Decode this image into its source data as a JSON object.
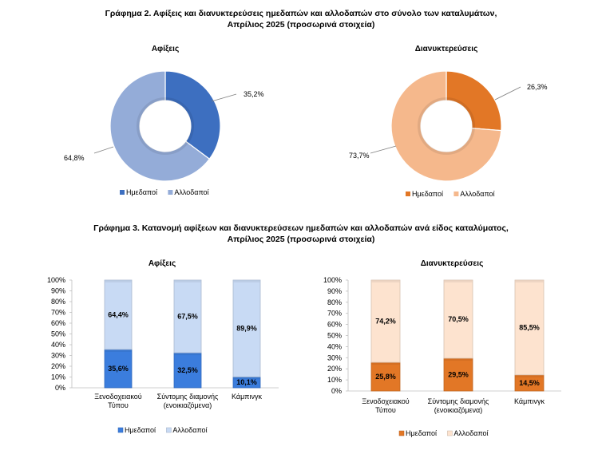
{
  "figure2": {
    "title_line1": "Γράφημα 2. Αφίξεις και διανυκτερεύσεις ημεδαπών και αλλοδαπών στο σύνολο των καταλυμάτων,",
    "title_line2": "Απρίλιος 2025  (προσωρινά στοιχεία)"
  },
  "figure3": {
    "title_line1": "Γράφημα 3. Κατανομή αφίξεων και διανυκτερεύσεων ημεδαπών και αλλοδαπών ανά είδος καταλύματος,",
    "title_line2": "Απρίλιος 2025 (προσωρινά στοιχεία)"
  },
  "chart_data": [
    {
      "type": "pie",
      "donut": true,
      "title": "Αφίξεις",
      "categories": [
        "Ημεδαποί",
        "Αλλοδαποί"
      ],
      "values": [
        35.2,
        64.8
      ],
      "labels": [
        "35,2%",
        "64,8%"
      ],
      "colors": [
        "#3d6fc0",
        "#94acd8"
      ],
      "legend": "bottom"
    },
    {
      "type": "pie",
      "donut": true,
      "title": "Διανυκτερεύσεις",
      "categories": [
        "Ημεδαποί",
        "Αλλοδαποί"
      ],
      "values": [
        26.3,
        73.7
      ],
      "labels": [
        "26,3%",
        "73,7%"
      ],
      "colors": [
        "#e27726",
        "#f5b88c"
      ],
      "legend": "bottom"
    },
    {
      "type": "bar",
      "stacked": "percent",
      "title": "Αφίξεις",
      "categories": [
        [
          "Ξενοδοχειακού",
          "Τύπου"
        ],
        [
          "Σύντομης διαμονής",
          "(ενοικιαζόμενα)"
        ],
        [
          "Κάμπινγκ"
        ]
      ],
      "series": [
        {
          "name": "Ημεδαποί",
          "values": [
            35.6,
            32.5,
            10.1
          ],
          "labels": [
            "35,6%",
            "32,5%",
            "10,1%"
          ],
          "color": "#3b7ddd"
        },
        {
          "name": "Αλλοδαποί",
          "values": [
            64.4,
            67.5,
            89.9
          ],
          "labels": [
            "64,4%",
            "67,5%",
            "89,9%"
          ],
          "color": "#c8daf4"
        }
      ],
      "yticks": [
        "0%",
        "10%",
        "20%",
        "30%",
        "40%",
        "50%",
        "60%",
        "70%",
        "80%",
        "90%",
        "100%"
      ],
      "ylim": [
        0,
        100
      ],
      "legend": "bottom"
    },
    {
      "type": "bar",
      "stacked": "percent",
      "title": "Διανυκτερεύσεις",
      "categories": [
        [
          "Ξενοδοχειακού",
          "Τύπου"
        ],
        [
          "Σύντομης διαμονής",
          "(ενοικιαζόμενα)"
        ],
        [
          "Κάμπινγκ"
        ]
      ],
      "series": [
        {
          "name": "Ημεδαποί",
          "values": [
            25.8,
            29.5,
            14.5
          ],
          "labels": [
            "25,8%",
            "29,5%",
            "14,5%"
          ],
          "color": "#e27726"
        },
        {
          "name": "Αλλοδαποί",
          "values": [
            74.2,
            70.5,
            85.5
          ],
          "labels": [
            "74,2%",
            "70,5%",
            "85,5%"
          ],
          "color": "#fde3cf"
        }
      ],
      "yticks": [
        "0%",
        "10%",
        "20%",
        "30%",
        "40%",
        "50%",
        "60%",
        "70%",
        "80%",
        "90%",
        "100%"
      ],
      "ylim": [
        0,
        100
      ],
      "legend": "bottom"
    }
  ]
}
